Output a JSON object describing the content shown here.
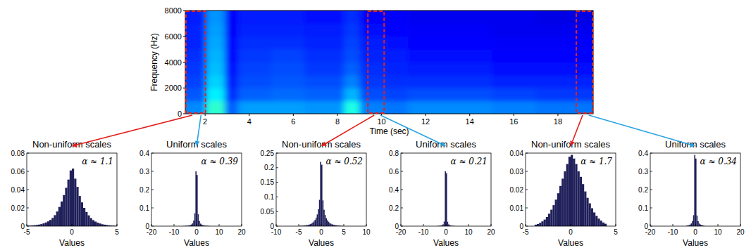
{
  "chart_data": [
    {
      "type": "heatmap",
      "x_label": "Time (sec)",
      "y_label": "Frequency (Hz)",
      "xlim": [
        1.1,
        19.6
      ],
      "xticks": [
        2,
        4,
        6,
        8,
        10,
        12,
        14,
        16,
        18
      ],
      "ylim": [
        0,
        8000
      ],
      "yticks": [
        0,
        2000,
        4000,
        6000,
        8000
      ],
      "x_edges": [
        1.1,
        2.05,
        2.9,
        3.5,
        5.0,
        6.5,
        8.3,
        9.0,
        10.2,
        11.2,
        13.0,
        15.0,
        17.0,
        19.6
      ],
      "y_edges": [
        0,
        1000,
        2000,
        3000,
        4000,
        5000,
        6000,
        7000,
        8000
      ],
      "color_range": [
        0,
        1
      ],
      "cells": [
        [
          0.26,
          0.42,
          0.22,
          0.28,
          0.28,
          0.27,
          0.4,
          0.25,
          0.24,
          0.26,
          0.26,
          0.25,
          0.24
        ],
        [
          0.21,
          0.36,
          0.17,
          0.22,
          0.23,
          0.22,
          0.3,
          0.2,
          0.19,
          0.2,
          0.2,
          0.19,
          0.18
        ],
        [
          0.19,
          0.33,
          0.15,
          0.2,
          0.21,
          0.2,
          0.25,
          0.18,
          0.17,
          0.17,
          0.17,
          0.16,
          0.16
        ],
        [
          0.18,
          0.31,
          0.14,
          0.19,
          0.2,
          0.18,
          0.22,
          0.17,
          0.16,
          0.15,
          0.15,
          0.14,
          0.14
        ],
        [
          0.17,
          0.3,
          0.13,
          0.18,
          0.19,
          0.17,
          0.2,
          0.16,
          0.15,
          0.14,
          0.14,
          0.13,
          0.13
        ],
        [
          0.16,
          0.29,
          0.13,
          0.17,
          0.17,
          0.16,
          0.19,
          0.15,
          0.14,
          0.13,
          0.13,
          0.12,
          0.12
        ],
        [
          0.16,
          0.28,
          0.12,
          0.16,
          0.16,
          0.15,
          0.18,
          0.14,
          0.13,
          0.12,
          0.12,
          0.11,
          0.11
        ],
        [
          0.15,
          0.27,
          0.12,
          0.15,
          0.15,
          0.14,
          0.17,
          0.13,
          0.12,
          0.11,
          0.11,
          0.11,
          0.1
        ]
      ],
      "regions": [
        [
          1.1,
          2.05
        ],
        [
          9.35,
          10.15
        ],
        [
          18.8,
          19.6
        ]
      ]
    },
    {
      "type": "histogram",
      "title": "Non-uniform scales",
      "x_label": "Values",
      "annotation": "α ≈ 1.1",
      "color": "#20205a",
      "xlim": [
        -5,
        5
      ],
      "xticks": [
        -5,
        0,
        5
      ],
      "ylim": [
        0,
        0.08
      ],
      "yticks": [
        0,
        0.02,
        0.04,
        0.06,
        0.08
      ],
      "bins": [
        -5,
        -4.75,
        -4.5,
        -4.25,
        -4,
        -3.75,
        -3.5,
        -3.25,
        -3,
        -2.75,
        -2.5,
        -2.25,
        -2,
        -1.75,
        -1.5,
        -1.25,
        -1,
        -0.75,
        -0.5,
        -0.25,
        0,
        0.25,
        0.5,
        0.75,
        1,
        1.25,
        1.5,
        1.75,
        2,
        2.25,
        2.5,
        2.75,
        3,
        3.25,
        3.5,
        3.75,
        4,
        4.25,
        4.5,
        4.75,
        5
      ],
      "values": [
        0.0005,
        0.0006,
        0.0008,
        0.001,
        0.0013,
        0.0017,
        0.0022,
        0.003,
        0.004,
        0.0052,
        0.0068,
        0.009,
        0.012,
        0.016,
        0.021,
        0.027,
        0.034,
        0.042,
        0.051,
        0.061,
        0.063,
        0.052,
        0.043,
        0.033,
        0.026,
        0.02,
        0.0155,
        0.0118,
        0.0088,
        0.0066,
        0.005,
        0.0038,
        0.0029,
        0.0021,
        0.0016,
        0.0012,
        0.0009,
        0.0007,
        0.0005,
        0.0004
      ]
    },
    {
      "type": "histogram",
      "title": "Uniform scales",
      "x_label": "Values",
      "annotation": "α ≈ 0.39",
      "color": "#20205a",
      "xlim": [
        -20,
        20
      ],
      "xticks": [
        -20,
        -10,
        0,
        10,
        20
      ],
      "ylim": [
        0,
        0.4
      ],
      "yticks": [
        0,
        0.1,
        0.2,
        0.3,
        0.4
      ],
      "bins": [
        -6,
        -5.5,
        -5,
        -4.5,
        -4,
        -3.5,
        -3,
        -2.5,
        -2,
        -1.5,
        -1,
        -0.5,
        0,
        0.5,
        1,
        1.5,
        2,
        2.5,
        3,
        3.5,
        4,
        4.5,
        5,
        5.5,
        6
      ],
      "values": [
        0.001,
        0.001,
        0.002,
        0.002,
        0.003,
        0.004,
        0.006,
        0.009,
        0.015,
        0.03,
        0.07,
        0.3,
        0.28,
        0.065,
        0.028,
        0.014,
        0.009,
        0.006,
        0.004,
        0.003,
        0.002,
        0.002,
        0.001,
        0.001
      ]
    },
    {
      "type": "histogram",
      "title": "Non-uniform scales",
      "x_label": "Values",
      "annotation": "α ≈ 0.52",
      "color": "#20205a",
      "xlim": [
        -10,
        10
      ],
      "xticks": [
        -10,
        -5,
        0,
        5,
        10
      ],
      "ylim": [
        0,
        0.25
      ],
      "yticks": [
        0,
        0.05,
        0.1,
        0.15,
        0.2,
        0.25
      ],
      "bins": [
        -5,
        -4.75,
        -4.5,
        -4.25,
        -4,
        -3.75,
        -3.5,
        -3.25,
        -3,
        -2.75,
        -2.5,
        -2.25,
        -2,
        -1.75,
        -1.5,
        -1.25,
        -1,
        -0.75,
        -0.5,
        -0.25,
        0,
        0.25,
        0.5,
        0.75,
        1,
        1.25,
        1.5,
        1.75,
        2,
        2.25,
        2.5,
        2.75,
        3,
        3.25,
        3.5,
        3.75,
        4,
        4.25,
        4.5,
        4.75,
        5
      ],
      "values": [
        0.001,
        0.0012,
        0.0014,
        0.0016,
        0.002,
        0.0024,
        0.003,
        0.0036,
        0.0045,
        0.0055,
        0.007,
        0.009,
        0.012,
        0.016,
        0.021,
        0.029,
        0.04,
        0.058,
        0.09,
        0.22,
        0.21,
        0.088,
        0.056,
        0.038,
        0.027,
        0.02,
        0.015,
        0.011,
        0.0085,
        0.0066,
        0.0052,
        0.0042,
        0.0034,
        0.0028,
        0.0023,
        0.0019,
        0.0015,
        0.0012,
        0.001,
        0.0008
      ]
    },
    {
      "type": "histogram",
      "title": "Uniform scales",
      "x_label": "Values",
      "annotation": "α ≈ 0.21",
      "color": "#20205a",
      "xlim": [
        -20,
        20
      ],
      "xticks": [
        -20,
        -10,
        0,
        10,
        20
      ],
      "ylim": [
        0,
        0.8
      ],
      "yticks": [
        0,
        0.2,
        0.4,
        0.6,
        0.8
      ],
      "bins": [
        -4,
        -3.5,
        -3,
        -2.5,
        -2,
        -1.5,
        -1,
        -0.5,
        0,
        0.5,
        1,
        1.5,
        2,
        2.5,
        3,
        3.5,
        4
      ],
      "values": [
        0.002,
        0.003,
        0.004,
        0.006,
        0.01,
        0.02,
        0.05,
        0.6,
        0.58,
        0.048,
        0.02,
        0.01,
        0.006,
        0.004,
        0.003,
        0.002
      ]
    },
    {
      "type": "histogram",
      "title": "Non-uniform scales",
      "x_label": "Values",
      "annotation": "α ≈ 1.7",
      "color": "#20205a",
      "xlim": [
        -5,
        5
      ],
      "xticks": [
        -5,
        0,
        5
      ],
      "ylim": [
        0,
        0.04
      ],
      "yticks": [
        0,
        0.01,
        0.02,
        0.03,
        0.04
      ],
      "bins": [
        -4,
        -3.75,
        -3.5,
        -3.25,
        -3,
        -2.75,
        -2.5,
        -2.25,
        -2,
        -1.75,
        -1.5,
        -1.25,
        -1,
        -0.75,
        -0.5,
        -0.25,
        0,
        0.25,
        0.5,
        0.75,
        1,
        1.25,
        1.5,
        1.75,
        2,
        2.25,
        2.5,
        2.75,
        3,
        3.25,
        3.5,
        3.75,
        4
      ],
      "values": [
        0.0008,
        0.0012,
        0.0018,
        0.0026,
        0.0036,
        0.005,
        0.0068,
        0.009,
        0.0115,
        0.0145,
        0.018,
        0.022,
        0.026,
        0.03,
        0.034,
        0.038,
        0.039,
        0.037,
        0.034,
        0.03,
        0.027,
        0.023,
        0.019,
        0.0155,
        0.0125,
        0.0098,
        0.0075,
        0.0056,
        0.0041,
        0.003,
        0.002,
        0.0013
      ]
    },
    {
      "type": "histogram",
      "title": "Uniform scales",
      "x_label": "Values",
      "annotation": "α ≈ 0.34",
      "color": "#20205a",
      "xlim": [
        -20,
        20
      ],
      "xticks": [
        -20,
        -10,
        0,
        10,
        20
      ],
      "ylim": [
        0,
        0.4
      ],
      "yticks": [
        0,
        0.1,
        0.2,
        0.3,
        0.4
      ],
      "bins": [
        -4,
        -3.5,
        -3,
        -2.5,
        -2,
        -1.5,
        -1,
        -0.5,
        0,
        0.5,
        1,
        1.5,
        2,
        2.5,
        3,
        3.5,
        4
      ],
      "values": [
        0.003,
        0.004,
        0.006,
        0.009,
        0.015,
        0.028,
        0.06,
        0.39,
        0.37,
        0.058,
        0.027,
        0.014,
        0.009,
        0.006,
        0.004,
        0.003
      ]
    }
  ]
}
